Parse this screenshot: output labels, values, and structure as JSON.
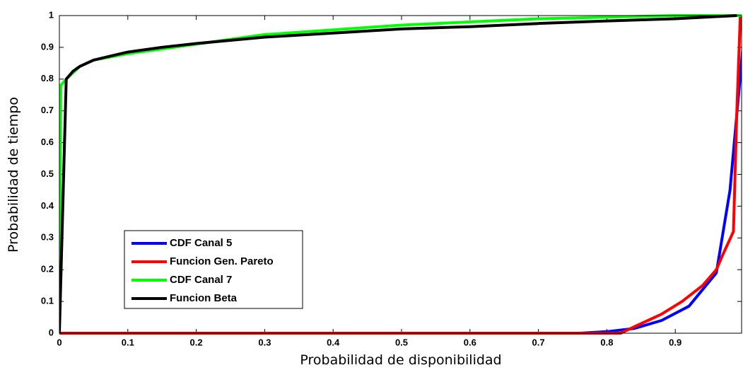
{
  "chart_data": {
    "type": "line",
    "xlabel": "Probabilidad de disponibilidad",
    "ylabel": "Probabilidad de tiempo",
    "xlim": [
      0,
      1
    ],
    "ylim": [
      0,
      1
    ],
    "xticks": [
      0,
      0.1,
      0.2,
      0.3,
      0.4,
      0.5,
      0.6,
      0.7,
      0.8,
      0.9
    ],
    "yticks": [
      0,
      0.1,
      0.2,
      0.3,
      0.4,
      0.5,
      0.6,
      0.7,
      0.8,
      0.9,
      1
    ],
    "legend": "lower-left",
    "series": [
      {
        "name": "CDF Canal 5",
        "color": "#0000ff",
        "x": [
          0,
          0.76,
          0.8,
          0.84,
          0.88,
          0.92,
          0.96,
          0.98,
          1.0
        ],
        "values": [
          0,
          0,
          0.005,
          0.015,
          0.04,
          0.085,
          0.19,
          0.45,
          0.93
        ]
      },
      {
        "name": "Funcion Gen. Pareto",
        "color": "#ff0000",
        "x": [
          0,
          0.82,
          0.84,
          0.88,
          0.91,
          0.94,
          0.96,
          0.97,
          0.985,
          0.99,
          0.995
        ],
        "values": [
          0,
          0,
          0.02,
          0.06,
          0.1,
          0.15,
          0.2,
          0.25,
          0.32,
          0.7,
          1.0
        ]
      },
      {
        "name": "CDF Canal 7",
        "color": "#00ff00",
        "x": [
          0,
          0.002,
          0.01,
          0.03,
          0.05,
          0.1,
          0.2,
          0.3,
          0.4,
          0.5,
          0.6,
          0.7,
          0.8,
          0.9,
          1.0
        ],
        "values": [
          0,
          0.78,
          0.8,
          0.84,
          0.86,
          0.88,
          0.91,
          0.94,
          0.955,
          0.97,
          0.98,
          0.99,
          0.995,
          1.0,
          1.0
        ]
      },
      {
        "name": "Funcion Beta",
        "color": "#000000",
        "x": [
          0,
          0.01,
          0.02,
          0.03,
          0.05,
          0.08,
          0.1,
          0.15,
          0.2,
          0.3,
          0.4,
          0.5,
          0.6,
          0.7,
          0.8,
          0.9,
          0.99
        ],
        "values": [
          0,
          0.8,
          0.825,
          0.84,
          0.86,
          0.875,
          0.885,
          0.9,
          0.912,
          0.932,
          0.945,
          0.958,
          0.965,
          0.975,
          0.983,
          0.99,
          1.0
        ]
      }
    ]
  }
}
